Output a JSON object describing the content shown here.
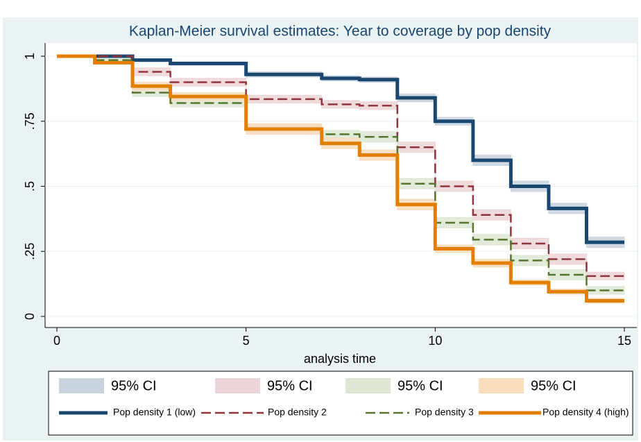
{
  "chart_data": {
    "type": "step",
    "title": "Kaplan-Meier survival estimates: Year to coverage by pop density",
    "x_label": "analysis time",
    "x": [
      0,
      1,
      2,
      3,
      4,
      5,
      6,
      7,
      8,
      9,
      10,
      11,
      12,
      13,
      14,
      15
    ],
    "xlim": [
      0,
      15
    ],
    "xticks": [
      0,
      5,
      10,
      15
    ],
    "ylim": [
      0,
      1
    ],
    "yticks": [
      0,
      {
        "value": 0.25,
        "label": ".25"
      },
      {
        "value": 0.5,
        "label": ".5"
      },
      {
        "value": 0.75,
        "label": ".75"
      },
      1
    ],
    "grid": true,
    "series": [
      {
        "name": "Pop density 1 (low)",
        "color": "#1a476f",
        "dash": "solid",
        "width": 5,
        "ci_name": "95% CI",
        "ci_color": "#c9d3df",
        "values": [
          1,
          1,
          0.985,
          0.972,
          0.972,
          0.93,
          0.93,
          0.915,
          0.91,
          0.84,
          0.75,
          0.6,
          0.5,
          0.415,
          0.285,
          0.285
        ],
        "ci_lower": [
          1,
          1,
          0.98,
          0.965,
          0.965,
          0.92,
          0.92,
          0.905,
          0.9,
          0.825,
          0.735,
          0.58,
          0.48,
          0.395,
          0.265,
          0.265
        ],
        "ci_upper": [
          1,
          1,
          0.99,
          0.979,
          0.979,
          0.94,
          0.94,
          0.925,
          0.92,
          0.855,
          0.765,
          0.62,
          0.52,
          0.435,
          0.305,
          0.305
        ]
      },
      {
        "name": "Pop density 2",
        "color": "#90353b",
        "dash": "dashed",
        "width": 2.5,
        "ci_name": "95% CI",
        "ci_color": "#ecd5d6",
        "values": [
          1,
          1,
          0.94,
          0.9,
          0.9,
          0.835,
          0.835,
          0.815,
          0.81,
          0.65,
          0.5,
          0.39,
          0.28,
          0.22,
          0.155,
          0.155
        ],
        "ci_lower": [
          1,
          1,
          0.925,
          0.885,
          0.885,
          0.82,
          0.82,
          0.8,
          0.795,
          0.63,
          0.48,
          0.37,
          0.26,
          0.2,
          0.14,
          0.14
        ],
        "ci_upper": [
          1,
          1,
          0.955,
          0.915,
          0.915,
          0.85,
          0.85,
          0.83,
          0.825,
          0.67,
          0.52,
          0.41,
          0.3,
          0.24,
          0.17,
          0.17
        ]
      },
      {
        "name": "Pop density 3",
        "color": "#55752f",
        "dash": "dashed",
        "width": 2.5,
        "ci_name": "95% CI",
        "ci_color": "#dde6d2",
        "values": [
          1,
          0.985,
          0.86,
          0.82,
          0.82,
          0.72,
          0.72,
          0.7,
          0.69,
          0.51,
          0.36,
          0.295,
          0.215,
          0.16,
          0.1,
          0.1
        ],
        "ci_lower": [
          1,
          0.98,
          0.845,
          0.805,
          0.805,
          0.705,
          0.705,
          0.685,
          0.67,
          0.49,
          0.34,
          0.275,
          0.195,
          0.14,
          0.085,
          0.085
        ],
        "ci_upper": [
          1,
          0.99,
          0.875,
          0.835,
          0.835,
          0.735,
          0.735,
          0.715,
          0.71,
          0.53,
          0.38,
          0.315,
          0.235,
          0.18,
          0.115,
          0.115
        ]
      },
      {
        "name": "Pop density 4 (high)",
        "color": "#e37e00",
        "dash": "solid",
        "width": 5,
        "ci_name": "95% CI",
        "ci_color": "#f8dcbc",
        "values": [
          1,
          0.975,
          0.885,
          0.845,
          0.845,
          0.72,
          0.72,
          0.665,
          0.62,
          0.43,
          0.26,
          0.205,
          0.13,
          0.095,
          0.06,
          0.06
        ],
        "ci_lower": [
          1,
          0.97,
          0.87,
          0.83,
          0.83,
          0.7,
          0.7,
          0.645,
          0.6,
          0.41,
          0.245,
          0.19,
          0.12,
          0.085,
          0.05,
          0.05
        ],
        "ci_upper": [
          1,
          0.98,
          0.9,
          0.86,
          0.86,
          0.74,
          0.74,
          0.685,
          0.64,
          0.45,
          0.275,
          0.22,
          0.14,
          0.105,
          0.07,
          0.07
        ]
      }
    ]
  }
}
